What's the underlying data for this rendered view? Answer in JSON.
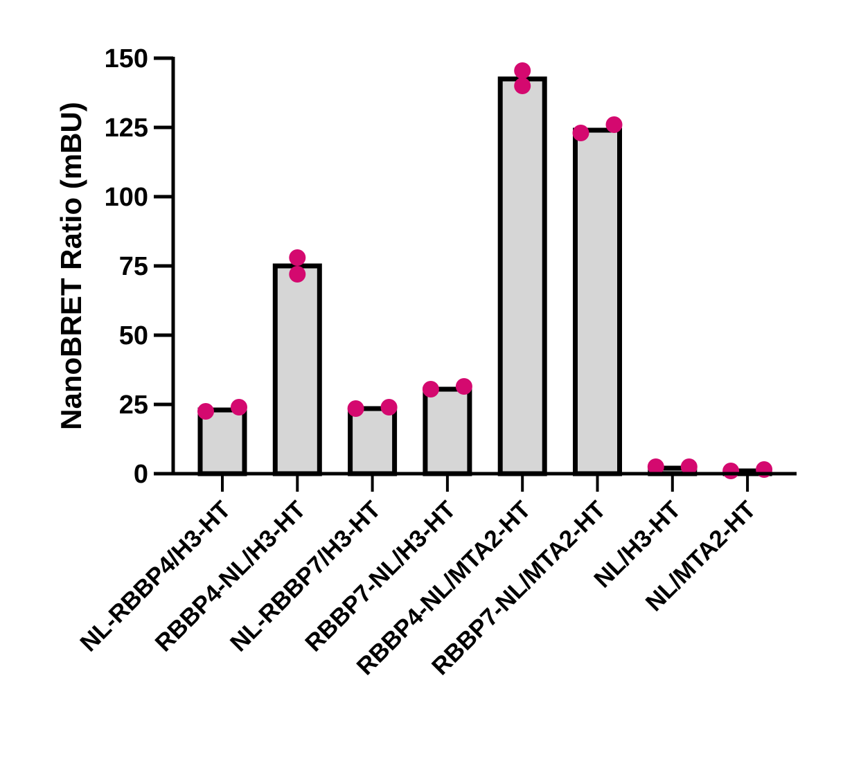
{
  "chart_data": {
    "type": "bar",
    "title": "",
    "xlabel": "",
    "ylabel": "NanoBRET Ratio (mBU)",
    "ylim": [
      0,
      150
    ],
    "yticks": [
      0,
      25,
      50,
      75,
      100,
      125,
      150
    ],
    "grid": false,
    "categories": [
      "NL-RBBP4/H3-HT",
      "RBBP4-NL/H3-HT",
      "NL-RBBP7/H3-HT",
      "RBBP7-NL/H3-HT",
      "RBBP4-NL/MTA2-HT",
      "RBBP7-NL/MTA2-HT",
      "NL/H3-HT",
      "NL/MTA2-HT"
    ],
    "values": [
      23,
      75,
      23.5,
      30.5,
      142.5,
      124,
      2,
      1
    ],
    "points": [
      [
        22.5,
        24
      ],
      [
        78,
        72
      ],
      [
        23.5,
        24
      ],
      [
        30.5,
        31.5
      ],
      [
        140,
        145.5
      ],
      [
        123,
        126
      ],
      [
        2.5,
        2.5
      ],
      [
        1,
        1.5
      ]
    ],
    "colors": {
      "bar_fill": "#d6d6d6",
      "bar_stroke": "#000000",
      "points": "#d4096f"
    }
  }
}
